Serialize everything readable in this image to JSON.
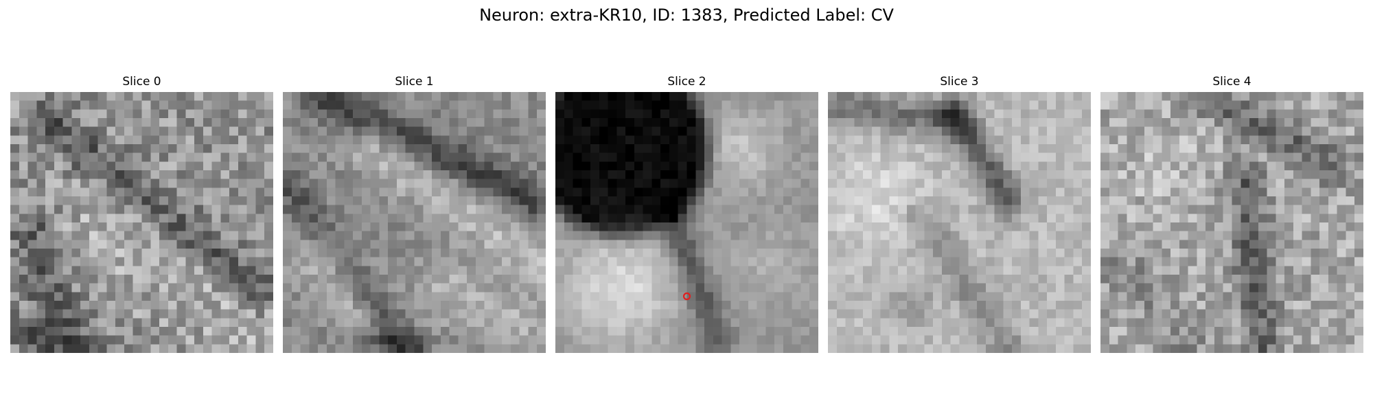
{
  "figure": {
    "title": "Neuron: extra-KR10, ID: 1383, Predicted Label: CV"
  },
  "panels": [
    {
      "title": "Slice 0"
    },
    {
      "title": "Slice 1"
    },
    {
      "title": "Slice 2"
    },
    {
      "title": "Slice 3"
    },
    {
      "title": "Slice 4"
    }
  ],
  "marker": {
    "panel": 2,
    "color": "#e02020",
    "shape": "circle-icon"
  },
  "colors": {
    "colormap": "grayscale",
    "background": "#ffffff"
  }
}
